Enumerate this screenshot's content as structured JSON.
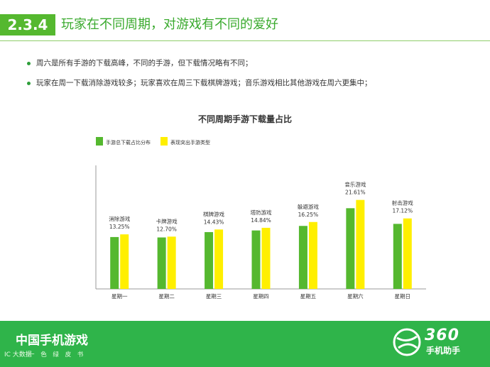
{
  "header": {
    "section": "2.3.4",
    "title": "玩家在不同周期，对游戏有不同的爱好"
  },
  "bullets": [
    "周六是所有手游的下载高峰，不同的手游，但下载情况略有不同；",
    "玩家在周一下载消除游戏较多；玩家喜欢在周三下载棋牌游戏；音乐游戏相比其他游戏在周六更集中；"
  ],
  "chart_data": {
    "type": "bar",
    "title": "不同周期手游下载量占比",
    "categories": [
      "星期一",
      "星期二",
      "星期三",
      "星期四",
      "星期五",
      "星期六",
      "星期日"
    ],
    "series": [
      {
        "name": "手游总下载占比分布",
        "color": "#55b82f",
        "values": [
          12.6,
          12.5,
          13.8,
          14.2,
          15.3,
          19.6,
          15.8
        ]
      },
      {
        "name": "表现突出手游类型",
        "color": "#ffef00",
        "values": [
          13.25,
          12.7,
          14.43,
          14.84,
          16.25,
          21.61,
          17.12
        ]
      }
    ],
    "annotations": [
      {
        "label": "消除游戏",
        "value": "13.25%"
      },
      {
        "label": "卡牌游戏",
        "value": "12.70%"
      },
      {
        "label": "棋牌游戏",
        "value": "14.43%"
      },
      {
        "label": "塔防游戏",
        "value": "14.84%"
      },
      {
        "label": "躲避游戏",
        "value": "16.25%"
      },
      {
        "label": "音乐游戏",
        "value": "21.61%"
      },
      {
        "label": "射击游戏",
        "value": "17.12%"
      }
    ],
    "ylim": [
      0,
      30
    ],
    "legend_position": "top-left",
    "grid": false
  },
  "footer": {
    "title": "中国手机游戏",
    "subtitle": "一  色  绿  皮  书",
    "watermark": "IC 大数据",
    "logo_number": "360",
    "logo_text": "手机助手"
  },
  "colors": {
    "accent": "#55b82f",
    "footer": "#2fb44a",
    "highlight": "#ffef00"
  }
}
